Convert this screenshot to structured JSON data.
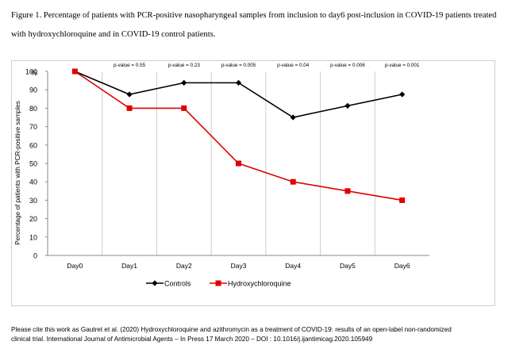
{
  "caption": {
    "line1": "Figure 1. Percentage of patients with PCR-positive nasopharyngeal samples from inclusion to day6 post-inclusion in COVID-19 patients treated",
    "line2": "with hydroxychloroquine and in COVID-19 control patients."
  },
  "footnote": {
    "line1": "Please cite this work as Gautret et al. (2020) Hydroxychloroquine and azithromycin as a treatment of COVID-19: results of an open-label non-randomized",
    "line2": "clinical trial. International Journal of Antimicrobial Agents – In Press 17 March 2020 – DOI : 10.1016/j.ijantimicag.2020.105949"
  },
  "chart_data": {
    "type": "line",
    "title": "",
    "categories": [
      "Day0",
      "Day1",
      "Day2",
      "Day3",
      "Day4",
      "Day5",
      "Day6"
    ],
    "ylabel": "Percentage of patients with PCR-positive samples",
    "yunit": "%",
    "ylim": [
      0,
      100
    ],
    "yticks": [
      0,
      10,
      20,
      30,
      40,
      50,
      60,
      70,
      80,
      90,
      100
    ],
    "series": [
      {
        "name": "Controls",
        "color": "#000000",
        "marker": "diamond",
        "values": [
          100,
          87.5,
          93.8,
          93.8,
          75,
          81.3,
          87.5
        ]
      },
      {
        "name": "Hydroxychloroquine",
        "color": "#e00000",
        "marker": "square",
        "values": [
          100,
          80,
          80,
          50,
          40,
          35,
          30
        ]
      }
    ],
    "pvalues": [
      "p-value = 0.55",
      "p-value = 0.23",
      "p-value = 0.005",
      "p-value = 0.04",
      "p-value = 0.006",
      "p-value = 0.001"
    ],
    "grid": "vertical",
    "legend_position": "bottom"
  }
}
